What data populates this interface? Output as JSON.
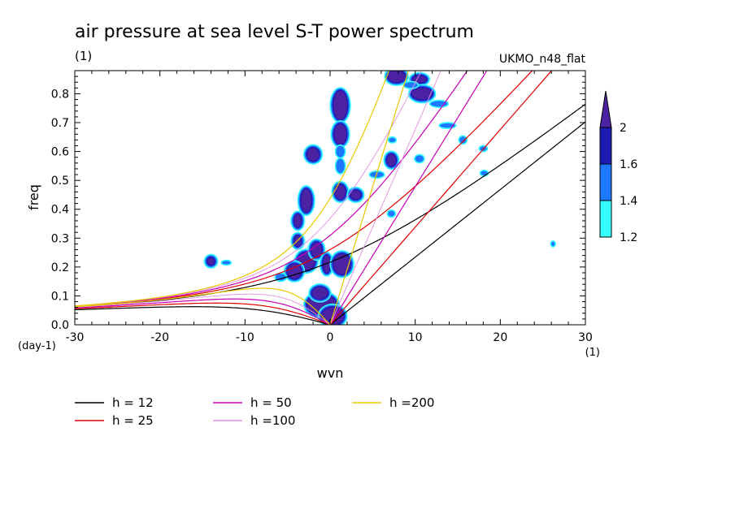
{
  "title": "air pressure at sea level S-T power spectrum",
  "subtitle": "(1)",
  "source": "UKMO_n48_flat",
  "colors": {
    "level_1_2": "#33ffff",
    "level_1_4": "#1e78ff",
    "level_1_6": "#1c1cb4",
    "level_2": "#4b22a2"
  },
  "chart_data": {
    "type": "heatmap",
    "title": "air pressure at sea level S-T power spectrum",
    "xlabel": "wvn",
    "ylabel": "freq",
    "x_unit": "(1)",
    "y_unit": "(day-1)",
    "xlim": [
      -30,
      30
    ],
    "ylim": [
      0,
      0.88
    ],
    "xticks": [
      -30,
      -20,
      -10,
      0,
      10,
      20,
      30
    ],
    "yticks": [
      0.0,
      0.1,
      0.2,
      0.3,
      0.4,
      0.5,
      0.6,
      0.7,
      0.8
    ],
    "grid": false,
    "colorbar": {
      "levels": [
        "1.2",
        "1.4",
        "1.6",
        "2"
      ],
      "colors": [
        "#33ffff",
        "#1e78ff",
        "#1c1cb4",
        "#4b22a2"
      ],
      "extend": "max"
    },
    "dispersion_curves": [
      {
        "label": "h = 12",
        "h": 12,
        "color": "#000000"
      },
      {
        "label": "h = 25",
        "h": 25,
        "color": "#e00000"
      },
      {
        "label": "h = 50",
        "h": 50,
        "color": "#c800b4"
      },
      {
        "label": "h =100",
        "h": 100,
        "color": "#e090e0"
      },
      {
        "label": "h =200",
        "h": 200,
        "color": "#e8c800"
      }
    ],
    "blobs": [
      {
        "x": 1.2,
        "y": 0.76,
        "rx": 0.8,
        "ry": 0.05,
        "level": 2
      },
      {
        "x": 1.2,
        "y": 0.66,
        "rx": 0.7,
        "ry": 0.035,
        "level": 2
      },
      {
        "x": 1.2,
        "y": 0.6,
        "rx": 0.5,
        "ry": 0.02,
        "level": 1
      },
      {
        "x": 1.2,
        "y": 0.55,
        "rx": 0.5,
        "ry": 0.025,
        "level": 1
      },
      {
        "x": 1.2,
        "y": 0.46,
        "rx": 0.6,
        "ry": 0.025,
        "level": 2
      },
      {
        "x": -2.0,
        "y": 0.59,
        "rx": 0.7,
        "ry": 0.022,
        "level": 2
      },
      {
        "x": -2.8,
        "y": 0.43,
        "rx": 0.6,
        "ry": 0.04,
        "level": 2
      },
      {
        "x": -3.8,
        "y": 0.36,
        "rx": 0.4,
        "ry": 0.022,
        "level": 2
      },
      {
        "x": -3.8,
        "y": 0.29,
        "rx": 0.4,
        "ry": 0.018,
        "level": 2
      },
      {
        "x": -2.8,
        "y": 0.22,
        "rx": 1.0,
        "ry": 0.03,
        "level": 2
      },
      {
        "x": -4.2,
        "y": 0.185,
        "rx": 0.8,
        "ry": 0.025,
        "level": 2
      },
      {
        "x": -1.6,
        "y": 0.26,
        "rx": 0.6,
        "ry": 0.025,
        "level": 2
      },
      {
        "x": -0.4,
        "y": 0.21,
        "rx": 0.4,
        "ry": 0.03,
        "level": 2
      },
      {
        "x": 1.4,
        "y": 0.21,
        "rx": 1.0,
        "ry": 0.035,
        "level": 2
      },
      {
        "x": -1.0,
        "y": 0.07,
        "rx": 1.7,
        "ry": 0.035,
        "level": 2
      },
      {
        "x": 0.3,
        "y": 0.03,
        "rx": 1.3,
        "ry": 0.03,
        "level": 2
      },
      {
        "x": -1.2,
        "y": 0.11,
        "rx": 0.9,
        "ry": 0.02,
        "level": 2
      },
      {
        "x": -5.8,
        "y": 0.165,
        "rx": 0.6,
        "ry": 0.012,
        "level": 1
      },
      {
        "x": -14.0,
        "y": 0.22,
        "rx": 0.4,
        "ry": 0.012,
        "level": 2
      },
      {
        "x": -12.2,
        "y": 0.215,
        "rx": 0.5,
        "ry": 0.006,
        "level": 1
      },
      {
        "x": 7.8,
        "y": 0.86,
        "rx": 1.0,
        "ry": 0.02,
        "level": 2
      },
      {
        "x": 10.5,
        "y": 0.85,
        "rx": 0.8,
        "ry": 0.012,
        "level": 2
      },
      {
        "x": 10.8,
        "y": 0.8,
        "rx": 1.2,
        "ry": 0.02,
        "level": 2
      },
      {
        "x": 9.5,
        "y": 0.83,
        "rx": 0.8,
        "ry": 0.01,
        "level": 1
      },
      {
        "x": 12.8,
        "y": 0.765,
        "rx": 1.0,
        "ry": 0.01,
        "level": 1
      },
      {
        "x": 13.8,
        "y": 0.69,
        "rx": 0.9,
        "ry": 0.008,
        "level": 1
      },
      {
        "x": 15.6,
        "y": 0.64,
        "rx": 0.4,
        "ry": 0.012,
        "level": 1
      },
      {
        "x": 10.5,
        "y": 0.575,
        "rx": 0.5,
        "ry": 0.012,
        "level": 1
      },
      {
        "x": 7.2,
        "y": 0.57,
        "rx": 0.5,
        "ry": 0.02,
        "level": 2
      },
      {
        "x": 5.5,
        "y": 0.52,
        "rx": 0.8,
        "ry": 0.01,
        "level": 1
      },
      {
        "x": 3.0,
        "y": 0.45,
        "rx": 0.6,
        "ry": 0.015,
        "level": 2
      },
      {
        "x": 7.2,
        "y": 0.385,
        "rx": 0.4,
        "ry": 0.01,
        "level": 1
      },
      {
        "x": 18.0,
        "y": 0.61,
        "rx": 0.4,
        "ry": 0.008,
        "level": 1
      },
      {
        "x": 18.1,
        "y": 0.525,
        "rx": 0.4,
        "ry": 0.008,
        "level": 1
      },
      {
        "x": 26.2,
        "y": 0.28,
        "rx": 0.2,
        "ry": 0.008,
        "level": 1
      },
      {
        "x": 7.3,
        "y": 0.64,
        "rx": 0.4,
        "ry": 0.008,
        "level": 1
      }
    ]
  }
}
